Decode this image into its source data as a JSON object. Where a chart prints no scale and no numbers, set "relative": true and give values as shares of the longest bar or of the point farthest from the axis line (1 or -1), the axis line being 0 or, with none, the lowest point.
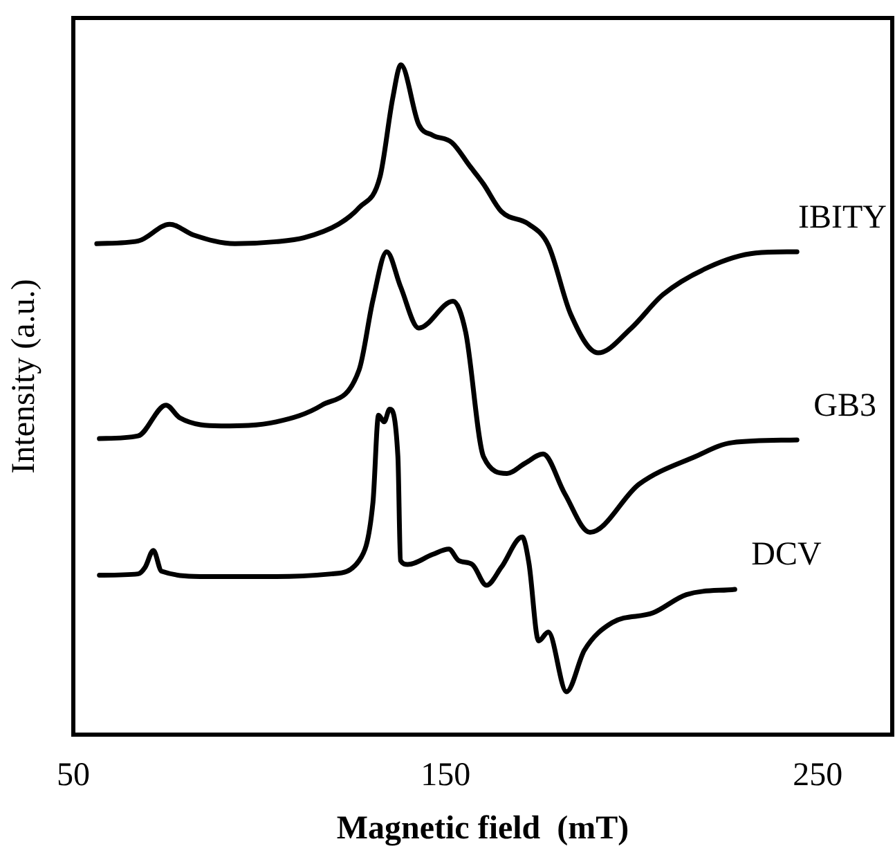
{
  "chart_data": {
    "type": "line",
    "xlabel": "Magnetic field  (mT)",
    "ylabel": "Intensity (a.u.)",
    "relative": true,
    "xlim": [
      50,
      270
    ],
    "xticks": [
      50,
      150,
      250
    ],
    "grid": false,
    "legend": false,
    "marker": "none",
    "line_style": "solid",
    "series": [
      {
        "name": "IBITY",
        "color": "#000000",
        "x": [
          56.3,
          67.4,
          75.9,
          82.3,
          93.4,
          104.5,
          112,
          121.2,
          126.8,
          132.4,
          135.8,
          138,
          142.8,
          146.5,
          151.7,
          156.5,
          160.2,
          165,
          172.4,
          177.6,
          183.6,
          191,
          199.9,
          208.4,
          220.7,
          233.3,
          244.4
        ],
        "values": [
          0.733,
          0.737,
          0.762,
          0.746,
          0.733,
          0.736,
          0.742,
          0.762,
          0.787,
          0.833,
          0.95,
          1.0,
          0.911,
          0.895,
          0.884,
          0.849,
          0.822,
          0.781,
          0.762,
          0.731,
          0.628,
          0.57,
          0.607,
          0.657,
          0.698,
          0.719,
          0.721
        ]
      },
      {
        "name": "GB3",
        "color": "#000000",
        "x": [
          57,
          67.4,
          74.9,
          78.6,
          89.7,
          104.5,
          116.8,
          126.8,
          130.5,
          134.2,
          137.9,
          142.8,
          152,
          155.4,
          160.2,
          166.5,
          171.3,
          176.2,
          182,
          188.8,
          202,
          217,
          227,
          244.4
        ],
        "values": [
          0.442,
          0.446,
          0.492,
          0.473,
          0.461,
          0.467,
          0.492,
          0.545,
          0.649,
          0.721,
          0.669,
          0.607,
          0.647,
          0.601,
          0.415,
          0.39,
          0.405,
          0.419,
          0.36,
          0.302,
          0.374,
          0.415,
          0.436,
          0.44
        ]
      },
      {
        "name": "DCV",
        "color": "#000000",
        "x": [
          57,
          67.4,
          69.3,
          71.5,
          73.7,
          86,
          104.5,
          119.4,
          126.8,
          130.5,
          132,
          133.5,
          135,
          137.2,
          137.9,
          139.8,
          146.5,
          150.9,
          153.5,
          157.2,
          161,
          165,
          170.6,
          172.4,
          175,
          177.6,
          182.5,
          187.3,
          194.7,
          205.8,
          214.7,
          227.7
        ],
        "values": [
          0.238,
          0.24,
          0.25,
          0.275,
          0.244,
          0.236,
          0.236,
          0.24,
          0.26,
          0.347,
          0.477,
          0.467,
          0.486,
          0.415,
          0.26,
          0.254,
          0.269,
          0.277,
          0.26,
          0.254,
          0.223,
          0.25,
          0.295,
          0.256,
          0.14,
          0.153,
          0.064,
          0.126,
          0.167,
          0.182,
          0.209,
          0.217
        ]
      }
    ]
  }
}
